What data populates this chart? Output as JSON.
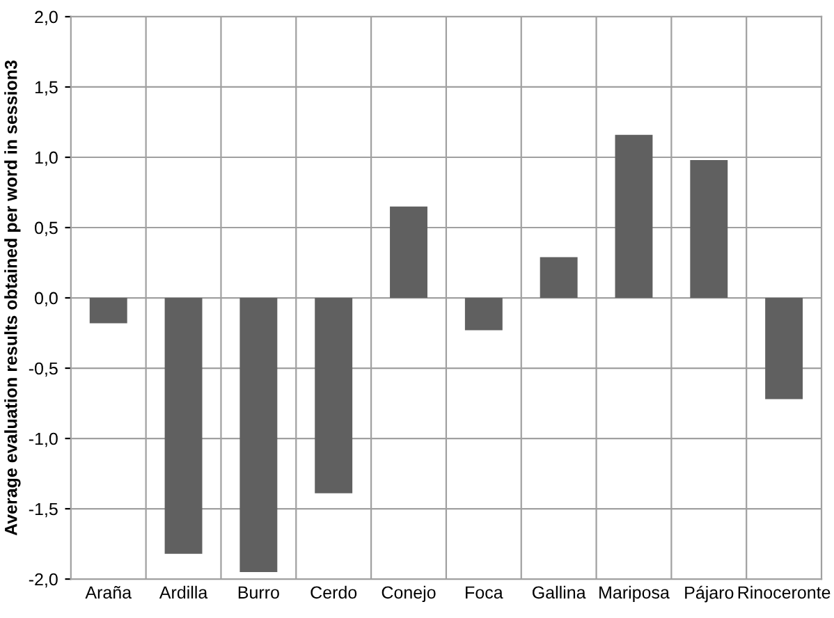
{
  "chart_data": {
    "type": "bar",
    "ylabel": "Average evaluation results obtained per word in session3",
    "categories": [
      "Araña",
      "Ardilla",
      "Burro",
      "Cerdo",
      "Conejo",
      "Foca",
      "Gallina",
      "Mariposa",
      "Pájaro",
      "Rinoceronte"
    ],
    "values": [
      -0.18,
      -1.82,
      -1.95,
      -1.39,
      0.65,
      -0.23,
      0.29,
      1.16,
      0.98,
      -0.72
    ],
    "color": "#606060",
    "ylim": [
      -2,
      2
    ],
    "yticks": [
      {
        "value": -2,
        "label": "-2,0"
      },
      {
        "value": -1.5,
        "label": "-1,5"
      },
      {
        "value": -1,
        "label": "-1,0"
      },
      {
        "value": -0.5,
        "label": "-0,5"
      },
      {
        "value": 0,
        "label": "0,0"
      },
      {
        "value": 0.5,
        "label": "0,5"
      },
      {
        "value": 1,
        "label": "1,0"
      },
      {
        "value": 1.5,
        "label": "1,5"
      },
      {
        "value": 2,
        "label": "2,0"
      }
    ],
    "grid": true
  }
}
